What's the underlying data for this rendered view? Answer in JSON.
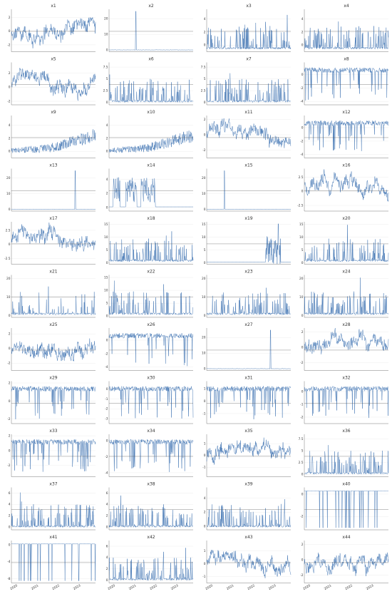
{
  "chart_data": {
    "type": "line",
    "layout": "small-multiples",
    "grid": true,
    "colors": {
      "series": "#3a6fb0",
      "reference": "#555555",
      "grid": "#e6e6e6"
    },
    "x_range": [
      "2020",
      "2023"
    ],
    "x_tick_labels": [
      "2020",
      "2021",
      "2022",
      "2023"
    ],
    "panels": [
      {
        "title": "x1",
        "y_ticks": [
          -2,
          0,
          2
        ],
        "y_range": [
          -3,
          3.2
        ],
        "shape": "noisy"
      },
      {
        "title": "x2",
        "y_ticks": [
          0,
          10,
          20
        ],
        "y_range": [
          -1,
          26
        ],
        "shape": "spike"
      },
      {
        "title": "x3",
        "y_ticks": [
          0,
          2,
          4
        ],
        "y_range": [
          -1,
          5.5
        ],
        "shape": "burst"
      },
      {
        "title": "x4",
        "y_ticks": [
          0,
          2,
          4
        ],
        "y_range": [
          -1,
          5.5
        ],
        "shape": "burst"
      },
      {
        "title": "x5",
        "y_ticks": [
          -2,
          0,
          2
        ],
        "y_range": [
          -2.5,
          3.5
        ],
        "shape": "noisy"
      },
      {
        "title": "x6",
        "y_ticks": [
          0.0,
          2.5,
          5.0,
          7.5
        ],
        "y_range": [
          -0.5,
          8.5
        ],
        "shape": "burst"
      },
      {
        "title": "x7",
        "y_ticks": [
          0.0,
          2.5,
          5.0,
          7.5
        ],
        "y_range": [
          -0.5,
          8.5
        ],
        "shape": "burst"
      },
      {
        "title": "x8",
        "y_ticks": [
          -4,
          -2,
          0
        ],
        "y_range": [
          -4.5,
          1.8
        ],
        "shape": "dips"
      },
      {
        "title": "x9",
        "y_ticks": [
          0,
          2,
          4
        ],
        "y_range": [
          -1,
          5.5
        ],
        "shape": "rising"
      },
      {
        "title": "x10",
        "y_ticks": [
          0,
          2,
          4
        ],
        "y_range": [
          -1,
          5.5
        ],
        "shape": "rising"
      },
      {
        "title": "x11",
        "y_ticks": [
          -2,
          0,
          2
        ],
        "y_range": [
          -3,
          2.5
        ],
        "shape": "noisy"
      },
      {
        "title": "x12",
        "y_ticks": [
          -4,
          -2,
          0
        ],
        "y_range": [
          -4.5,
          1.8
        ],
        "shape": "dips"
      },
      {
        "title": "x13",
        "y_ticks": [
          0,
          10,
          20
        ],
        "y_range": [
          -1,
          26
        ],
        "shape": "spike"
      },
      {
        "title": "x14",
        "y_ticks": [
          0,
          2,
          4
        ],
        "y_range": [
          -0.5,
          5.5
        ],
        "shape": "blocks"
      },
      {
        "title": "x15",
        "y_ticks": [
          0,
          10,
          20
        ],
        "y_range": [
          -1,
          26
        ],
        "shape": "spike"
      },
      {
        "title": "x16",
        "y_ticks": [
          -2.5,
          0.0,
          2.5
        ],
        "y_range": [
          -3.5,
          4
        ],
        "shape": "noisy"
      },
      {
        "title": "x17",
        "y_ticks": [
          -2.5,
          0.0,
          2.5
        ],
        "y_range": [
          -3.5,
          4
        ],
        "shape": "noisy"
      },
      {
        "title": "x18",
        "y_ticks": [
          0,
          5,
          10,
          15
        ],
        "y_range": [
          -0.5,
          16
        ],
        "shape": "burst"
      },
      {
        "title": "x19",
        "y_ticks": [
          0,
          5,
          10,
          15
        ],
        "y_range": [
          -0.5,
          16
        ],
        "shape": "late"
      },
      {
        "title": "x20",
        "y_ticks": [
          0,
          5,
          10,
          15
        ],
        "y_range": [
          -0.5,
          16
        ],
        "shape": "burst"
      },
      {
        "title": "x21",
        "y_ticks": [
          0,
          10,
          20
        ],
        "y_range": [
          -1,
          22
        ],
        "shape": "burst"
      },
      {
        "title": "x22",
        "y_ticks": [
          0,
          5,
          10,
          15
        ],
        "y_range": [
          -0.5,
          16
        ],
        "shape": "burst"
      },
      {
        "title": "x23",
        "y_ticks": [
          0,
          10,
          20
        ],
        "y_range": [
          -1,
          22
        ],
        "shape": "burst"
      },
      {
        "title": "x24",
        "y_ticks": [
          0,
          10,
          20
        ],
        "y_range": [
          -1,
          22
        ],
        "shape": "burst"
      },
      {
        "title": "x25",
        "y_ticks": [
          -2,
          0,
          2
        ],
        "y_range": [
          -3,
          2.8
        ],
        "shape": "noisy"
      },
      {
        "title": "x26",
        "y_ticks": [
          -4,
          -2,
          0
        ],
        "y_range": [
          -4.5,
          1.8
        ],
        "shape": "dips"
      },
      {
        "title": "x27",
        "y_ticks": [
          0,
          10,
          20
        ],
        "y_range": [
          -1,
          26
        ],
        "shape": "spike"
      },
      {
        "title": "x28",
        "y_ticks": [
          -2,
          0,
          2
        ],
        "y_range": [
          -3,
          2.5
        ],
        "shape": "noisy"
      },
      {
        "title": "x29",
        "y_ticks": [
          -2,
          0,
          2
        ],
        "y_range": [
          -2.5,
          2.2
        ],
        "shape": "dips"
      },
      {
        "title": "x30",
        "y_ticks": [
          -3,
          -2,
          -1,
          0
        ],
        "y_range": [
          -3.5,
          0.8
        ],
        "shape": "dips"
      },
      {
        "title": "x31",
        "y_ticks": [
          -1,
          0,
          1
        ],
        "y_range": [
          -1.8,
          1.6
        ],
        "shape": "dips"
      },
      {
        "title": "x32",
        "y_ticks": [
          -2,
          -1,
          0
        ],
        "y_range": [
          -2.5,
          0.8
        ],
        "shape": "dips"
      },
      {
        "title": "x33",
        "y_ticks": [
          -2,
          0,
          2
        ],
        "y_range": [
          -3.5,
          2.2
        ],
        "shape": "dips"
      },
      {
        "title": "x34",
        "y_ticks": [
          -4,
          -2,
          0
        ],
        "y_range": [
          -4.5,
          0.8
        ],
        "shape": "dips"
      },
      {
        "title": "x35",
        "y_ticks": [
          -1,
          0,
          1
        ],
        "y_range": [
          -1.8,
          1.8
        ],
        "shape": "noisy"
      },
      {
        "title": "x36",
        "y_ticks": [
          0.0,
          2.5,
          5.0,
          7.5
        ],
        "y_range": [
          -0.5,
          8.5
        ],
        "shape": "burst"
      },
      {
        "title": "x37",
        "y_ticks": [
          0,
          2,
          4,
          6
        ],
        "y_range": [
          -0.5,
          7
        ],
        "shape": "burst"
      },
      {
        "title": "x38",
        "y_ticks": [
          0,
          2,
          4,
          6
        ],
        "y_range": [
          -0.5,
          7
        ],
        "shape": "burst"
      },
      {
        "title": "x39",
        "y_ticks": [
          0,
          2,
          4
        ],
        "y_range": [
          -0.5,
          5.5
        ],
        "shape": "burst"
      },
      {
        "title": "x40",
        "y_ticks": [
          -2,
          0
        ],
        "y_range": [
          -3.2,
          0.6
        ],
        "shape": "switch"
      },
      {
        "title": "x41",
        "y_ticks": [
          -8,
          -4,
          0
        ],
        "y_range": [
          -9,
          1
        ],
        "shape": "switch"
      },
      {
        "title": "x42",
        "y_ticks": [
          0,
          2,
          4,
          6
        ],
        "y_range": [
          -0.5,
          7
        ],
        "shape": "burst"
      },
      {
        "title": "x43",
        "y_ticks": [
          -1,
          0,
          1
        ],
        "y_range": [
          -1.5,
          1.8
        ],
        "shape": "noisy"
      },
      {
        "title": "x44",
        "y_ticks": [
          -2,
          0,
          2
        ],
        "y_range": [
          -3,
          2.5
        ],
        "shape": "noisy"
      }
    ]
  }
}
